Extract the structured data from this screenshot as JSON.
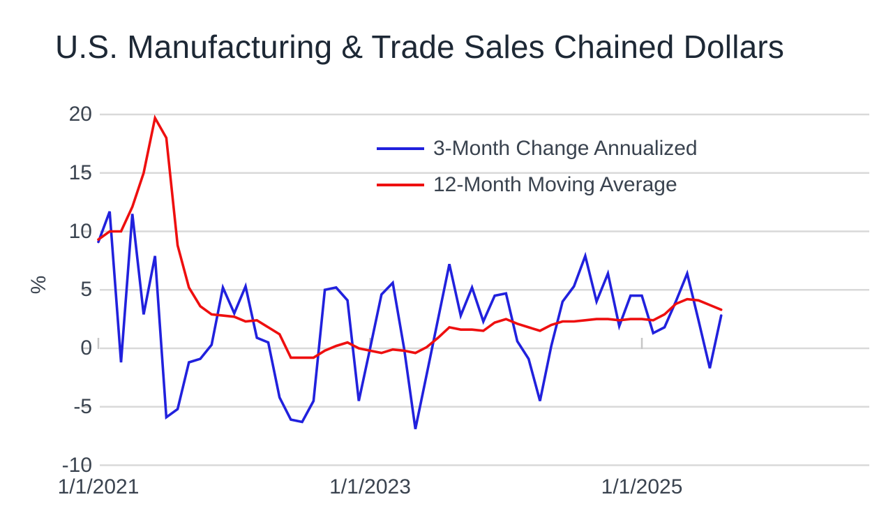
{
  "title": "U.S. Manufacturing & Trade Sales Chained Dollars",
  "colors": {
    "series_blue": "#2121dd",
    "series_red": "#ee0f0f",
    "gridline": "#d9d9d9",
    "tick": "#c6c6c6",
    "title_text": "#1d2835",
    "axis_text": "#3a434f",
    "background": "#ffffff"
  },
  "chart_data": {
    "type": "line",
    "title": "U.S. Manufacturing & Trade Sales Chained Dollars",
    "xlabel": "",
    "ylabel": "%",
    "ylim": [
      -10,
      20
    ],
    "y_ticks": [
      20,
      15,
      10,
      5,
      0,
      -5,
      -10
    ],
    "grid": true,
    "legend_position": "inside-top-center",
    "x_frequency": "monthly",
    "x_start": "1/1/2021",
    "x_end": "8/1/2025",
    "x_ticks": [
      {
        "label": "1/1/2021",
        "month_index": 0
      },
      {
        "label": "1/1/2023",
        "month_index": 24
      },
      {
        "label": "1/1/2025",
        "month_index": 48
      }
    ],
    "series": [
      {
        "name": "3-Month Change Annualized",
        "color": "#2121dd",
        "values": [
          9.1,
          11.7,
          -1.2,
          11.5,
          2.9,
          7.9,
          -5.9,
          -5.2,
          -1.2,
          -0.9,
          0.3,
          5.2,
          3.0,
          5.3,
          0.9,
          0.5,
          -4.2,
          -6.1,
          -6.3,
          -4.5,
          5.0,
          5.2,
          4.1,
          -4.5,
          0.0,
          4.6,
          5.6,
          0.0,
          -6.9,
          -2.2,
          2.5,
          7.2,
          2.8,
          5.2,
          2.3,
          4.5,
          4.7,
          0.6,
          -0.9,
          -4.5,
          0.2,
          4.0,
          5.3,
          7.9,
          4.0,
          6.4,
          1.9,
          4.5,
          4.5,
          1.3,
          1.8,
          4.0,
          6.4,
          2.4,
          -1.7,
          2.8
        ]
      },
      {
        "name": "12-Month Moving Average",
        "color": "#ee0f0f",
        "values": [
          9.3,
          10.0,
          10.0,
          12.1,
          15.0,
          19.7,
          18.0,
          8.8,
          5.2,
          3.6,
          2.9,
          2.8,
          2.7,
          2.3,
          2.4,
          1.8,
          1.2,
          -0.8,
          -0.8,
          -0.8,
          -0.2,
          0.2,
          0.5,
          0.0,
          -0.2,
          -0.4,
          -0.1,
          -0.2,
          -0.4,
          0.1,
          0.9,
          1.8,
          1.6,
          1.6,
          1.5,
          2.2,
          2.5,
          2.1,
          1.8,
          1.5,
          2.0,
          2.3,
          2.3,
          2.4,
          2.5,
          2.5,
          2.4,
          2.5,
          2.5,
          2.4,
          2.9,
          3.8,
          4.2,
          4.1,
          3.7,
          3.3
        ]
      }
    ]
  }
}
